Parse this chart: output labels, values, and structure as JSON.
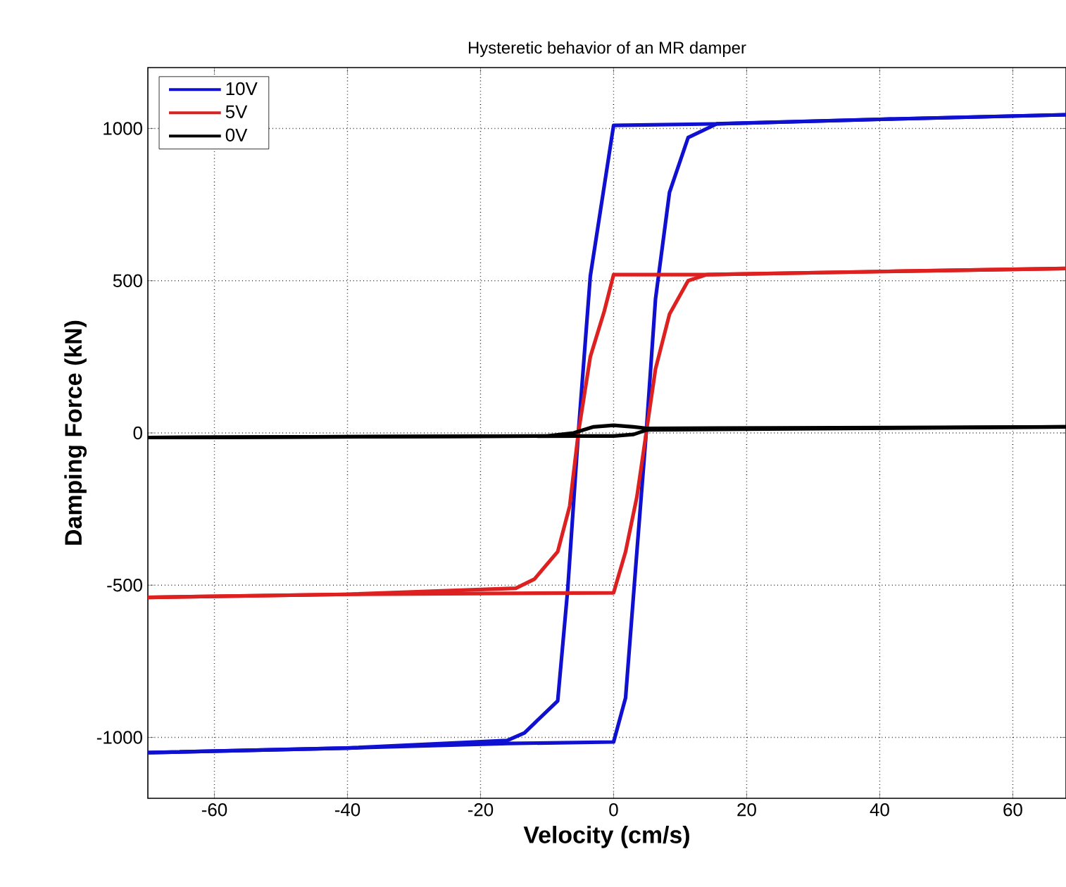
{
  "chart_data": {
    "type": "line",
    "title": "Hysteretic behavior of an MR damper",
    "xlabel": "Velocity (cm/s)",
    "ylabel": "Damping Force (kN)",
    "xlim": [
      -70,
      68
    ],
    "ylim": [
      -1200,
      1200
    ],
    "xticks": [
      -60,
      -40,
      -20,
      0,
      20,
      40,
      60
    ],
    "yticks": [
      -1000,
      -500,
      0,
      500,
      1000
    ],
    "grid": true,
    "legend": "top left",
    "line_style": "solid",
    "marker": "none",
    "series": [
      {
        "name": "10V",
        "color": "#1010d0",
        "x": [
          -70,
          -40,
          -16,
          0,
          1.8,
          3.5,
          4.9,
          6.3,
          8.4,
          11.2,
          15.5,
          40,
          68
        ],
        "values": [
          -1050,
          -1035,
          -1020,
          -1015,
          -870,
          -390,
          0,
          440,
          790,
          970,
          1015,
          1030,
          1045
        ]
      },
      {
        "color": "#1010d0",
        "x": [
          -70,
          -40,
          -16,
          -13.4,
          -8.4,
          -6.9,
          -5.3,
          -3.5,
          0,
          15,
          40,
          68
        ],
        "values": [
          -1050,
          -1035,
          -1010,
          -985,
          -880,
          -515,
          0,
          515,
          1010,
          1015,
          1030,
          1045
        ]
      },
      {
        "name": "5V",
        "color": "#dd2020",
        "x": [
          -70,
          -40,
          0,
          1.8,
          3.5,
          4.9,
          6.3,
          8.4,
          11.2,
          14,
          40,
          68
        ],
        "values": [
          -540,
          -530,
          -525,
          -390,
          -210,
          0,
          210,
          390,
          500,
          520,
          530,
          540
        ]
      },
      {
        "color": "#dd2020",
        "x": [
          -70,
          -40,
          -14.7,
          -11.9,
          -8.4,
          -6.6,
          -5.3,
          -3.5,
          -1.4,
          0,
          14,
          40,
          68
        ],
        "values": [
          -540,
          -530,
          -510,
          -480,
          -390,
          -240,
          0,
          250,
          400,
          520,
          520,
          530,
          540
        ]
      },
      {
        "name": "0V",
        "color": "#000000",
        "x": [
          -70,
          -10,
          -6,
          -3,
          0,
          3,
          5,
          68
        ],
        "values": [
          -15,
          -10,
          0,
          20,
          25,
          20,
          15,
          20
        ]
      },
      {
        "color": "#000000",
        "x": [
          -70,
          -5,
          0,
          3,
          5,
          68
        ],
        "values": [
          -15,
          -10,
          -10,
          -5,
          10,
          20
        ]
      }
    ]
  }
}
